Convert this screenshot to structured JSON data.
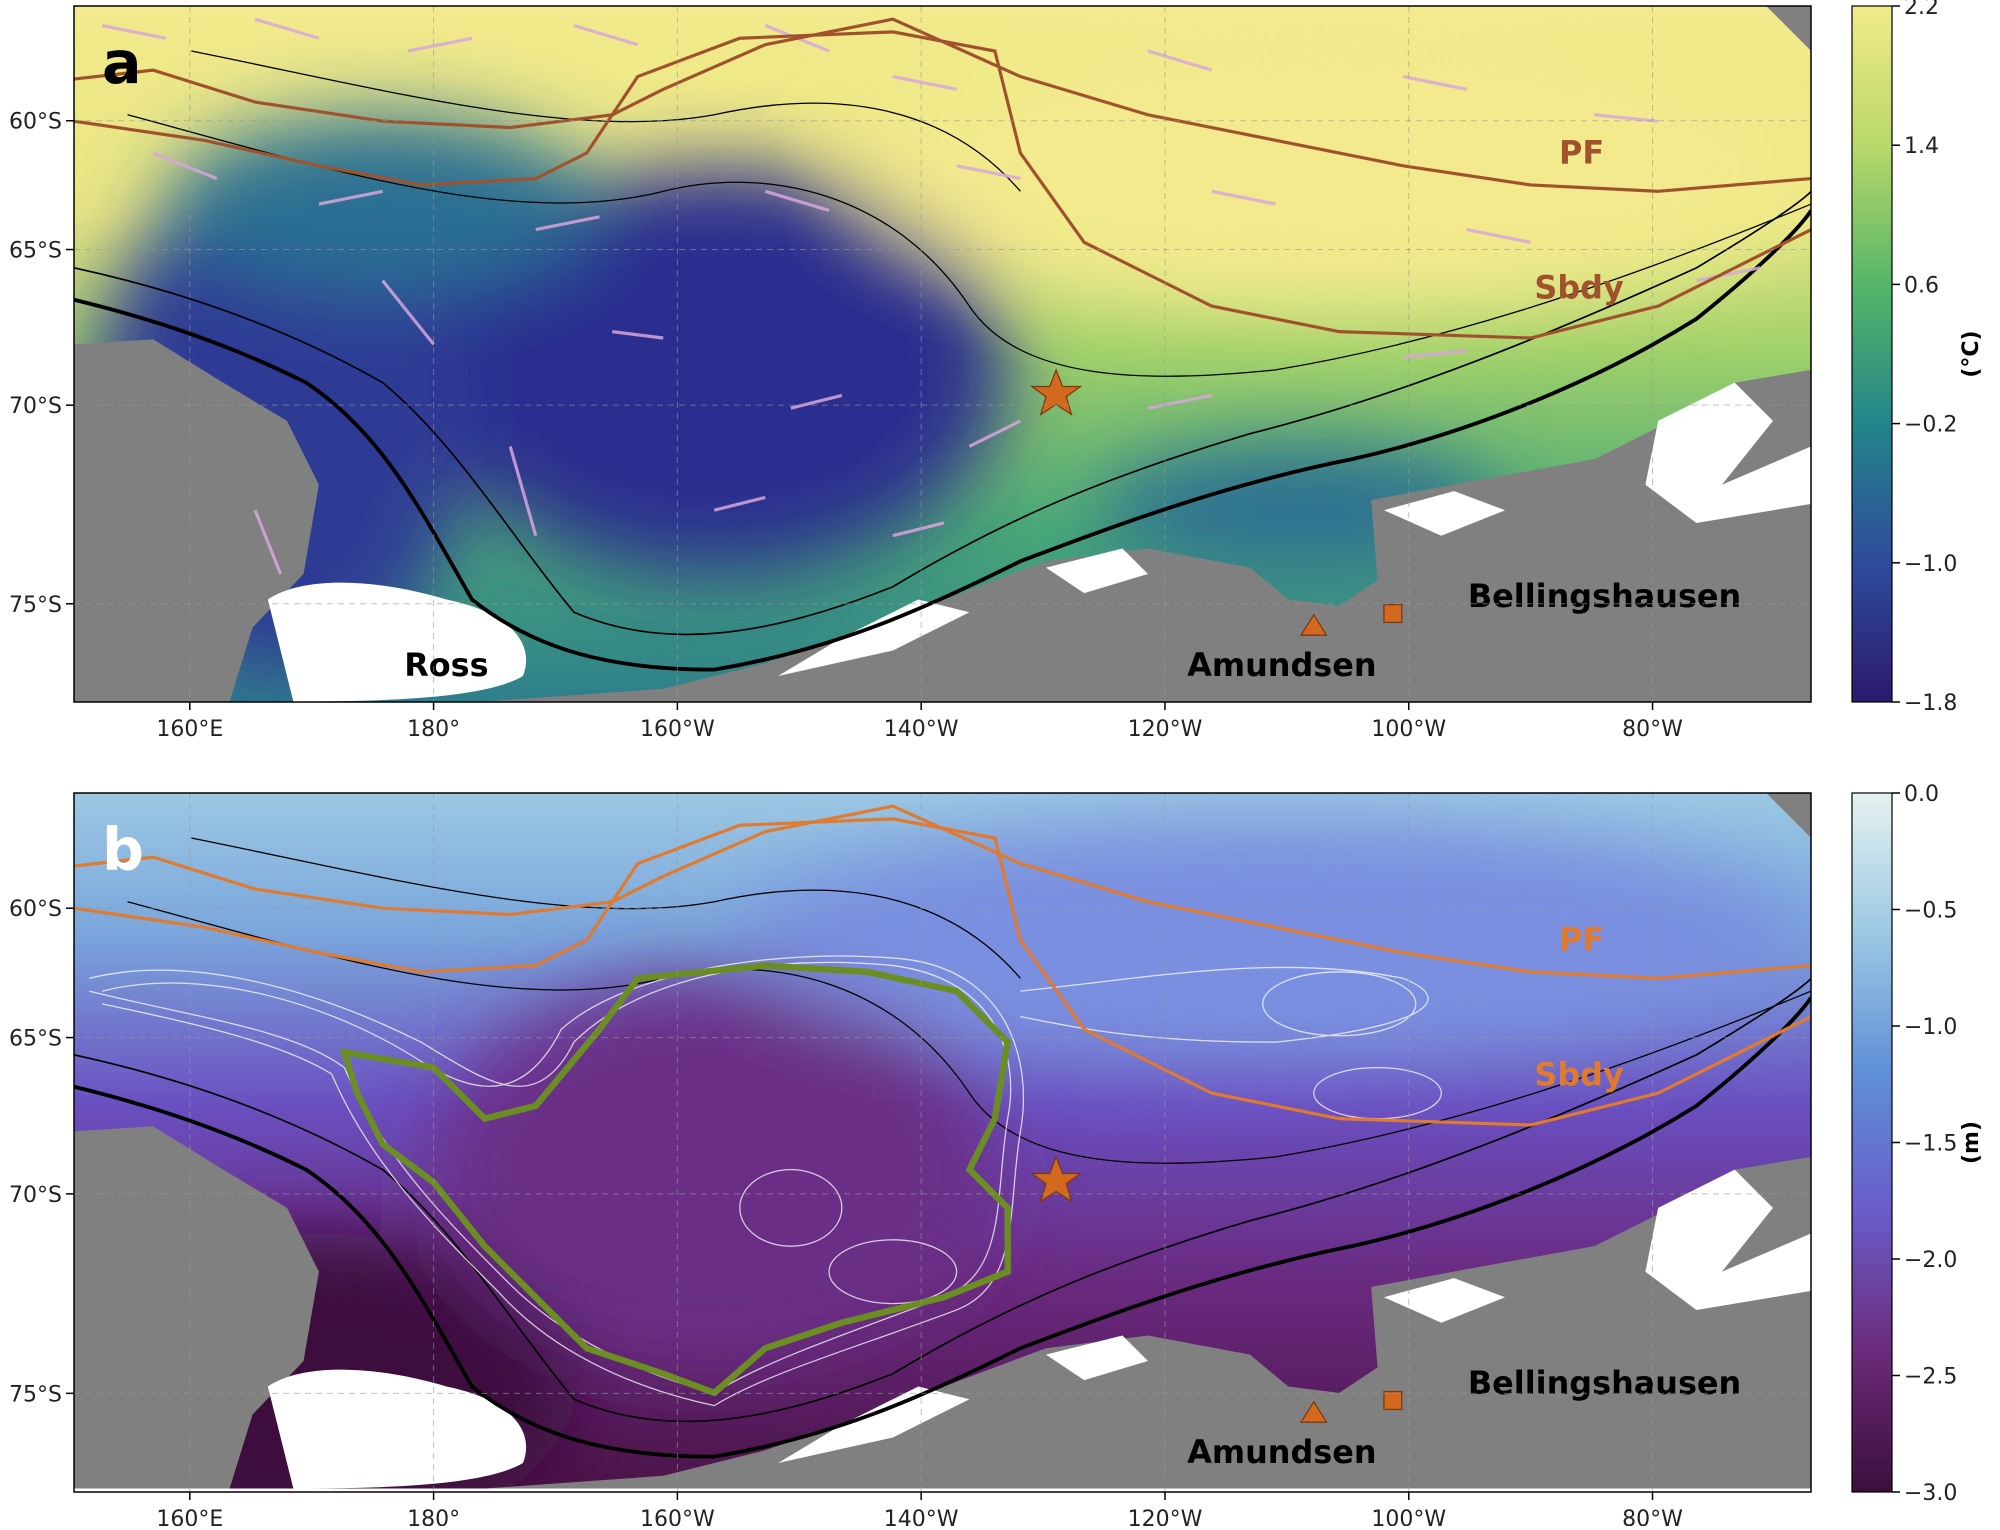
{
  "panels": [
    {
      "label": "a",
      "colorbar": {
        "label": "(°C)",
        "lim": [
          -1.8,
          2.2
        ],
        "ticks": [
          2.2,
          1.4,
          0.6,
          {
            "value": -0.2,
            "label": "−0.2"
          },
          {
            "value": -1.0,
            "label": "−1.0"
          },
          {
            "value": -1.8,
            "label": "−1.8"
          }
        ],
        "colors": [
          "#2b1a6e",
          "#2f4b9b",
          "#23858a",
          "#56b567",
          "#b9d86a",
          "#f2ea8c"
        ]
      }
    },
    {
      "label": "b",
      "colorbar": {
        "label": "(m)",
        "lim": [
          -3.0,
          0.0
        ],
        "ticks": [
          {
            "value": 0.0,
            "label": "0.0"
          },
          {
            "value": -0.5,
            "label": "−0.5"
          },
          {
            "value": -1.0,
            "label": "−1.0"
          },
          {
            "value": -1.5,
            "label": "−1.5"
          },
          {
            "value": -2.0,
            "label": "−2.0"
          },
          {
            "value": -2.5,
            "label": "−2.5"
          },
          {
            "value": -3.0,
            "label": "−3.0"
          }
        ],
        "colors": [
          "#3b0f3a",
          "#6b2a7a",
          "#6a5cc9",
          "#5f8fd8",
          "#9cc8e3",
          "#e6f2f0"
        ]
      }
    }
  ],
  "xlim": [
    150.5,
    293
  ],
  "ylim": [
    -77,
    -54.8
  ],
  "xticks": [
    {
      "value": 160,
      "label": "160°E"
    },
    {
      "value": 180,
      "label": "180°"
    },
    {
      "value": 200,
      "label": "160°W"
    },
    {
      "value": 220,
      "label": "140°W"
    },
    {
      "value": 240,
      "label": "120°W"
    },
    {
      "value": 260,
      "label": "100°W"
    },
    {
      "value": 280,
      "label": "80°W"
    }
  ],
  "yticks": [
    {
      "value": -60,
      "label": "60°S"
    },
    {
      "value": -65,
      "label": "65°S"
    },
    {
      "value": -70,
      "label": "70°S"
    },
    {
      "value": -75,
      "label": "75°S"
    }
  ],
  "places": [
    "Ross",
    "Amundsen",
    "Bellingshausen"
  ],
  "fronts": [
    "PF",
    "Sbdy"
  ]
}
